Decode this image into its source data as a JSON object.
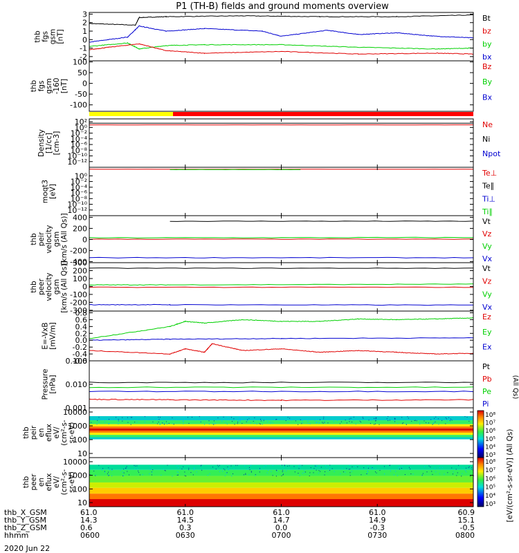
{
  "title": "P1 (TH-B) fields and ground moments overview",
  "date_label": "2020 Jun 22",
  "colors": {
    "black": "#000000",
    "red": "#e00000",
    "green": "#00d000",
    "blue": "#0000d0",
    "yellow": "#ffff00",
    "bar_red": "#ff0000"
  },
  "chart_data": [
    {
      "type": "line",
      "id": "fgs_gsm",
      "ylabel": [
        "thb",
        "fgs",
        "gsm",
        "[nT]"
      ],
      "ylim": [
        -2.5,
        3.2
      ],
      "yticks": [
        "3",
        "2",
        "1",
        "0",
        "-1",
        "-2"
      ],
      "ytick_values": [
        3,
        2,
        1,
        0,
        -1,
        -2
      ],
      "legend": [
        {
          "label": "Bt",
          "color": "#000000"
        },
        {
          "label": "bz",
          "color": "#e00000"
        },
        {
          "label": "by",
          "color": "#00d000"
        },
        {
          "label": "bx",
          "color": "#0000d0"
        }
      ],
      "series": [
        {
          "color": "#000000",
          "x": [
            0,
            0.12,
            0.13,
            0.2,
            0.4,
            0.6,
            0.8,
            1.0
          ],
          "y": [
            1.9,
            1.7,
            2.6,
            2.7,
            2.8,
            2.7,
            2.7,
            2.9
          ]
        },
        {
          "color": "#0000d0",
          "x": [
            0,
            0.1,
            0.13,
            0.2,
            0.3,
            0.45,
            0.5,
            0.62,
            0.7,
            0.8,
            0.9,
            1.0
          ],
          "y": [
            -0.3,
            0.3,
            1.6,
            1.0,
            1.3,
            1.0,
            0.4,
            1.1,
            0.6,
            0.8,
            0.4,
            0.2
          ]
        },
        {
          "color": "#00d000",
          "x": [
            0,
            0.1,
            0.13,
            0.2,
            0.3,
            0.5,
            0.7,
            0.9,
            1.0
          ],
          "y": [
            -0.8,
            -0.4,
            -1.1,
            -0.7,
            -0.6,
            -0.6,
            -0.9,
            -1.1,
            -1.0
          ]
        },
        {
          "color": "#e00000",
          "x": [
            0,
            0.05,
            0.13,
            0.2,
            0.3,
            0.5,
            0.7,
            0.9,
            1.0
          ],
          "y": [
            -1.2,
            -0.9,
            -0.5,
            -1.3,
            -1.6,
            -1.4,
            -1.7,
            -1.6,
            -1.7
          ]
        }
      ]
    },
    {
      "type": "line",
      "id": "fgs_gsm_offset",
      "ylabel": [
        "thb",
        "fgs",
        "gsm",
        "-160",
        "[nT]"
      ],
      "ylim": [
        -130,
        105
      ],
      "yticks": [
        "100",
        "50",
        "0",
        "-50",
        "-100"
      ],
      "ytick_values": [
        100,
        50,
        0,
        -50,
        -100
      ],
      "legend": [
        {
          "label": "Bz",
          "color": "#e00000"
        },
        {
          "label": "By",
          "color": "#00d000"
        },
        {
          "label": "Bx",
          "color": "#0000d0"
        }
      ],
      "series": []
    },
    {
      "type": "line",
      "id": "density",
      "scale": "log",
      "ylabel": [
        "Density",
        "[1/cc]",
        "[cm-3]"
      ],
      "ylim": [
        1e-14,
        1000
      ],
      "yticks": [
        "10²",
        "10⁰",
        "10⁻²",
        "10⁻⁴",
        "10⁻⁶",
        "10⁻⁸",
        "10⁻¹⁰",
        "10⁻¹²"
      ],
      "ytick_values": [
        100,
        1,
        0.01,
        0.0001,
        1e-06,
        1e-08,
        1e-10,
        1e-12
      ],
      "legend": [
        {
          "label": "Ne",
          "color": "#e00000"
        },
        {
          "label": "Ni",
          "color": "#000000"
        },
        {
          "label": "Npot",
          "color": "#0000d0"
        }
      ],
      "series": [
        {
          "color": "#000000",
          "x": [
            0,
            1
          ],
          "y": [
            30,
            30
          ]
        },
        {
          "color": "#e00000",
          "x": [
            0,
            1
          ],
          "y": [
            8,
            8
          ]
        }
      ]
    },
    {
      "type": "line",
      "id": "temperature",
      "scale": "log",
      "ylabel": [
        "moqt3",
        "[eV]"
      ],
      "ylim": [
        1e-14,
        1000
      ],
      "yticks": [
        "10⁰",
        "10⁻²",
        "10⁻⁴",
        "10⁻⁶",
        "10⁻⁸",
        "10⁻¹⁰",
        "10⁻¹²"
      ],
      "ytick_values": [
        1,
        0.01,
        0.0001,
        1e-06,
        1e-08,
        1e-10,
        1e-12
      ],
      "legend": [
        {
          "label": "Te⊥",
          "color": "#e00000"
        },
        {
          "label": "Te∥",
          "color": "#000000"
        },
        {
          "label": "Ti⊥",
          "color": "#0000d0"
        },
        {
          "label": "Ti∥",
          "color": "#00d000"
        }
      ],
      "series": [
        {
          "color": "#e00000",
          "x": [
            0,
            1
          ],
          "y": [
            200,
            200
          ]
        },
        {
          "color": "#00d000",
          "x": [
            0.21,
            0.55
          ],
          "y": [
            150,
            150
          ]
        }
      ]
    },
    {
      "type": "line",
      "id": "peir_velocity",
      "ylabel": [
        "thb",
        "peir",
        "velocity",
        "gsm",
        "[km/s (All Qs)]"
      ],
      "ylim": [
        -420,
        430
      ],
      "yticks": [
        "400",
        "200",
        "0",
        "-200",
        "-400"
      ],
      "ytick_values": [
        400,
        200,
        0,
        -200,
        -400
      ],
      "legend": [
        {
          "label": "Vt",
          "color": "#000000"
        },
        {
          "label": "Vz",
          "color": "#e00000"
        },
        {
          "label": "Vy",
          "color": "#00d000"
        },
        {
          "label": "Vx",
          "color": "#0000d0"
        }
      ],
      "series": [
        {
          "color": "#000000",
          "x": [
            0.21,
            1
          ],
          "y": [
            330,
            330
          ]
        },
        {
          "color": "#00d000",
          "x": [
            0,
            1
          ],
          "y": [
            30,
            35
          ]
        },
        {
          "color": "#e00000",
          "x": [
            0,
            1
          ],
          "y": [
            5,
            5
          ]
        },
        {
          "color": "#0000d0",
          "x": [
            0,
            1
          ],
          "y": [
            -330,
            -330
          ]
        }
      ]
    },
    {
      "type": "line",
      "id": "peer_velocity",
      "ylabel": [
        "thb",
        "peer",
        "velocity",
        "gsm",
        "[km/s (All Qs)]"
      ],
      "ylim": [
        -310,
        300
      ],
      "yticks": [
        "300",
        "200",
        "100",
        "0",
        "-100",
        "-200",
        "-300"
      ],
      "ytick_values": [
        300,
        200,
        100,
        0,
        -100,
        -200,
        -300
      ],
      "legend": [
        {
          "label": "Vt",
          "color": "#000000"
        },
        {
          "label": "Vz",
          "color": "#e00000"
        },
        {
          "label": "Vy",
          "color": "#00d000"
        },
        {
          "label": "Vx",
          "color": "#0000d0"
        }
      ],
      "series": [
        {
          "color": "#000000",
          "x": [
            0,
            1
          ],
          "y": [
            230,
            230
          ]
        },
        {
          "color": "#00d000",
          "x": [
            0,
            0.21,
            1
          ],
          "y": [
            20,
            20,
            30
          ]
        },
        {
          "color": "#e00000",
          "x": [
            0,
            1
          ],
          "y": [
            -10,
            -10
          ]
        },
        {
          "color": "#0000d0",
          "x": [
            0,
            0.21,
            1
          ],
          "y": [
            -230,
            -230,
            -235
          ]
        }
      ]
    },
    {
      "type": "line",
      "id": "e_field",
      "ylabel": [
        "E=-VxB",
        "[mV/m]"
      ],
      "ylim": [
        -0.6,
        0.85
      ],
      "yticks": [
        "0.8",
        "0.6",
        "0.4",
        "0.2",
        "0.0",
        "-0.2",
        "-0.4",
        "-0.6"
      ],
      "ytick_values": [
        0.8,
        0.6,
        0.4,
        0.2,
        0,
        -0.2,
        -0.4,
        -0.6
      ],
      "legend": [
        {
          "label": "Ez",
          "color": "#e00000"
        },
        {
          "label": "Ey",
          "color": "#00d000"
        },
        {
          "label": "Ex",
          "color": "#0000d0"
        }
      ],
      "series": [
        {
          "color": "#00d000",
          "x": [
            0,
            0.21,
            0.25,
            0.3,
            0.4,
            0.5,
            0.6,
            0.7,
            0.8,
            0.9,
            1.0
          ],
          "y": [
            0.05,
            0.4,
            0.55,
            0.5,
            0.6,
            0.55,
            0.55,
            0.62,
            0.6,
            0.62,
            0.65
          ]
        },
        {
          "color": "#0000d0",
          "x": [
            0,
            0.21,
            0.5,
            1.0
          ],
          "y": [
            0.0,
            0.03,
            0.05,
            0.07
          ]
        },
        {
          "color": "#e00000",
          "x": [
            0,
            0.21,
            0.25,
            0.3,
            0.32,
            0.4,
            0.5,
            0.6,
            0.7,
            0.8,
            0.9,
            1.0
          ],
          "y": [
            -0.3,
            -0.4,
            -0.25,
            -0.35,
            -0.1,
            -0.3,
            -0.25,
            -0.35,
            -0.3,
            -0.35,
            -0.4,
            -0.38
          ]
        }
      ]
    },
    {
      "type": "line",
      "id": "pressure",
      "scale": "log",
      "ylabel": [
        "Pressure",
        "[nPa]"
      ],
      "ylim": [
        0.001,
        0.1
      ],
      "yticks": [
        "0.100",
        "0.010",
        "0.001"
      ],
      "ytick_values": [
        0.1,
        0.01,
        0.001
      ],
      "legend": [
        {
          "label": "Pt",
          "color": "#000000"
        },
        {
          "label": "Pb",
          "color": "#e00000"
        },
        {
          "label": "Pe",
          "color": "#00d000"
        },
        {
          "label": "Pi",
          "color": "#0000d0"
        }
      ],
      "right_label": "(All Qs)",
      "series": [
        {
          "color": "#000000",
          "x": [
            0,
            1
          ],
          "y": [
            0.012,
            0.012
          ]
        },
        {
          "color": "#00d000",
          "x": [
            0,
            1
          ],
          "y": [
            0.0075,
            0.0075
          ]
        },
        {
          "color": "#0000d0",
          "x": [
            0,
            1
          ],
          "y": [
            0.005,
            0.005
          ]
        },
        {
          "color": "#e00000",
          "x": [
            0,
            0.21,
            0.5,
            1.0
          ],
          "y": [
            0.0023,
            0.0022,
            0.0021,
            0.0022
          ]
        }
      ]
    },
    {
      "type": "heatmap",
      "id": "peir_en_eflux",
      "scale": "log",
      "ylabel": [
        "thb",
        "peir",
        "en",
        "eflux",
        "eV/",
        "(cm²-s-",
        "sr-eV)"
      ],
      "ylim": [
        5,
        20000
      ],
      "yticks": [
        "10000",
        "1000",
        "100",
        "10"
      ],
      "ytick_values": [
        10000,
        1000,
        100,
        10
      ]
    },
    {
      "type": "heatmap",
      "id": "peer_en_eflux",
      "scale": "log",
      "ylabel": [
        "thb",
        "peer",
        "en",
        "eflux",
        "eV/",
        "(cm²-s-",
        "sr-eV)"
      ],
      "ylim": [
        5,
        20000
      ],
      "yticks": [
        "10000",
        "1000",
        "100",
        "10"
      ],
      "ytick_values": [
        10000,
        1000,
        100,
        10
      ]
    }
  ],
  "colorbar": {
    "label": "[eV/(cm²-s-sr-eV)] (All Qs)",
    "ticks": [
      "10⁸",
      "10⁷",
      "10⁶",
      "10⁵",
      "10⁴",
      "10³"
    ],
    "ticks_lower": [
      "10⁸",
      "10⁷",
      "10⁶",
      "10⁵",
      "10⁴",
      "10³"
    ]
  },
  "xaxis": {
    "rows": [
      {
        "name": "thb_X_GSM",
        "values": [
          "61.0",
          "61.0",
          "61.0",
          "61.0",
          "60.9"
        ]
      },
      {
        "name": "thb_Y_GSM",
        "values": [
          "14.3",
          "14.5",
          "14.7",
          "14.9",
          "15.1"
        ]
      },
      {
        "name": "thb_Z_GSM",
        "values": [
          "0.6",
          "0.3",
          "0.0",
          "-0.3",
          "-0.5"
        ]
      },
      {
        "name": "hhmm",
        "values": [
          "0600",
          "0630",
          "0700",
          "0730",
          "0800"
        ]
      }
    ]
  }
}
